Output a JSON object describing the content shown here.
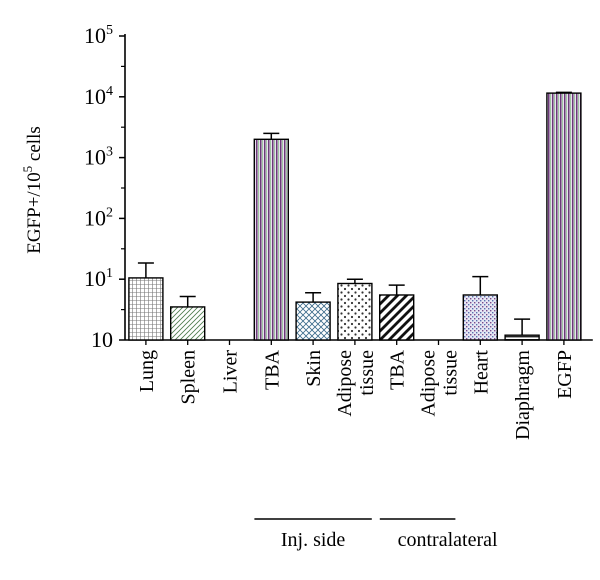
{
  "chart_data": {
    "type": "bar",
    "yscale": "log",
    "ylim": [
      1,
      100000
    ],
    "ylabel": {
      "base": "EGFP+/10",
      "sup": "5",
      "rest": " cells"
    },
    "yticks": [
      {
        "value": 1,
        "base": "10",
        "sup": ""
      },
      {
        "value": 10,
        "base": "10",
        "sup": "1"
      },
      {
        "value": 100,
        "base": "10",
        "sup": "2"
      },
      {
        "value": 1000,
        "base": "10",
        "sup": "3"
      },
      {
        "value": 10000,
        "base": "10",
        "sup": "4"
      },
      {
        "value": 100000,
        "base": "10",
        "sup": "5"
      }
    ],
    "categories": [
      {
        "lines": [
          "Lung"
        ],
        "value": 10.5,
        "err": 8,
        "pattern": "grid"
      },
      {
        "lines": [
          "Spleen"
        ],
        "value": 3.5,
        "err": 1.7,
        "pattern": "diag"
      },
      {
        "lines": [
          "Liver"
        ],
        "value": null,
        "err": null,
        "pattern": "none"
      },
      {
        "lines": [
          "TBA"
        ],
        "value": 2000,
        "err": 500,
        "pattern": "vstripe"
      },
      {
        "lines": [
          "Skin"
        ],
        "value": 4.2,
        "err": 1.8,
        "pattern": "crosshatch"
      },
      {
        "lines": [
          "Adipose",
          "tissue"
        ],
        "value": 8.5,
        "err": 1.5,
        "pattern": "dots"
      },
      {
        "lines": [
          "TBA"
        ],
        "value": 5.5,
        "err": 2.5,
        "pattern": "thickdiag"
      },
      {
        "lines": [
          "Adipose",
          "tissue"
        ],
        "value": null,
        "err": null,
        "pattern": "none"
      },
      {
        "lines": [
          "Heart"
        ],
        "value": 5.5,
        "err": 5.5,
        "pattern": "bluedots"
      },
      {
        "lines": [
          "Diaphragm"
        ],
        "value": 1.2,
        "err": 1.0,
        "pattern": "hstripe"
      },
      {
        "lines": [
          "EGFP"
        ],
        "value": 11500,
        "err": 300,
        "pattern": "vstripe"
      }
    ],
    "groups": [
      {
        "label": "Inj. side",
        "from": 3,
        "to": 5
      },
      {
        "label": "contralateral",
        "from": 6,
        "to": 7
      }
    ],
    "title": "",
    "grid": false,
    "legend": "none"
  },
  "colors": {
    "purple": "#6b3a78",
    "green": "#8fbf8f",
    "blue": "#5a6fb0",
    "black": "#000000"
  }
}
